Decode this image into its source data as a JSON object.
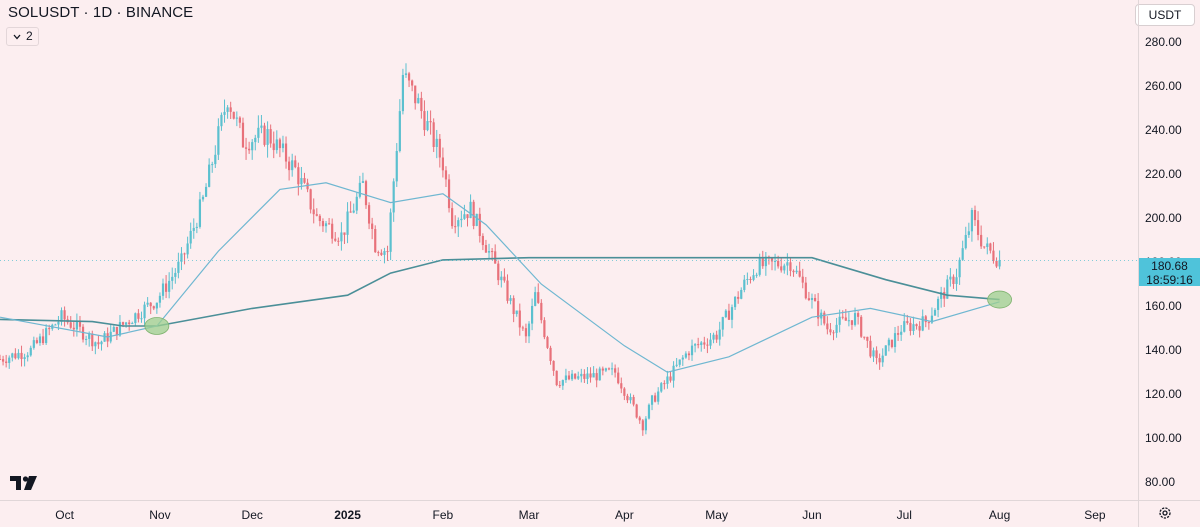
{
  "header": {
    "symbol_title": "SOLUSDT · 1D · BINANCE",
    "indicator_count": "2",
    "currency": "USDT"
  },
  "last_price": {
    "value": "180.68",
    "countdown": "18:59:16",
    "color": "#4fc3da"
  },
  "colors": {
    "background": "#fceef0",
    "up_candle": "#5bc0cf",
    "down_candle": "#e8717a",
    "ma_fast": "#6fb7d1",
    "ma_slow": "#4b8f98",
    "highlight_circle": "#9ccf8e"
  },
  "icons": {
    "logo": "tradingview-logo",
    "settings": "gear-icon",
    "toggle": "chevron-down-icon"
  },
  "chart_data": {
    "type": "candlestick",
    "title": "SOLUSDT · 1D · BINANCE",
    "y_ticks": [
      "280.00",
      "260.00",
      "240.00",
      "220.00",
      "200.00",
      "180.00",
      "160.00",
      "140.00",
      "120.00",
      "100.00",
      "80.00"
    ],
    "ylim": [
      72,
      299
    ],
    "x_ticks": [
      {
        "label": "Oct",
        "date": "2024-10-01"
      },
      {
        "label": "Nov",
        "date": "2024-11-01"
      },
      {
        "label": "Dec",
        "date": "2024-12-01"
      },
      {
        "label": "2025",
        "date": "2025-01-01",
        "bold": true
      },
      {
        "label": "Feb",
        "date": "2025-02-01"
      },
      {
        "label": "Mar",
        "date": "2025-03-01"
      },
      {
        "label": "Apr",
        "date": "2025-04-01"
      },
      {
        "label": "May",
        "date": "2025-05-01"
      },
      {
        "label": "Jun",
        "date": "2025-06-01"
      },
      {
        "label": "Jul",
        "date": "2025-07-01"
      },
      {
        "label": "Aug",
        "date": "2025-08-01"
      },
      {
        "label": "Sep",
        "date": "2025-09-01"
      }
    ],
    "xlim": [
      "2024-09-10",
      "2025-09-15"
    ],
    "price_path_key_points": [
      [
        "2024-09-10",
        136
      ],
      [
        "2024-09-20",
        140
      ],
      [
        "2024-09-30",
        155
      ],
      [
        "2024-10-12",
        143
      ],
      [
        "2024-10-25",
        157
      ],
      [
        "2024-10-31",
        163
      ],
      [
        "2024-11-08",
        180
      ],
      [
        "2024-11-15",
        208
      ],
      [
        "2024-11-23",
        255
      ],
      [
        "2024-11-28",
        235
      ],
      [
        "2024-12-06",
        238
      ],
      [
        "2024-12-15",
        222
      ],
      [
        "2024-12-22",
        200
      ],
      [
        "2024-12-30",
        192
      ],
      [
        "2025-01-06",
        215
      ],
      [
        "2025-01-10",
        188
      ],
      [
        "2025-01-14",
        185
      ],
      [
        "2025-01-19",
        265
      ],
      [
        "2025-01-24",
        252
      ],
      [
        "2025-02-01",
        225
      ],
      [
        "2025-02-04",
        200
      ],
      [
        "2025-02-10",
        204
      ],
      [
        "2025-02-18",
        178
      ],
      [
        "2025-02-28",
        145
      ],
      [
        "2025-03-03",
        165
      ],
      [
        "2025-03-10",
        126
      ],
      [
        "2025-03-20",
        128
      ],
      [
        "2025-03-29",
        130
      ],
      [
        "2025-04-07",
        106
      ],
      [
        "2025-04-10",
        117
      ],
      [
        "2025-04-22",
        140
      ],
      [
        "2025-05-01",
        147
      ],
      [
        "2025-05-10",
        170
      ],
      [
        "2025-05-14",
        178
      ],
      [
        "2025-05-25",
        180
      ],
      [
        "2025-06-01",
        162
      ],
      [
        "2025-06-06",
        150
      ],
      [
        "2025-06-15",
        155
      ],
      [
        "2025-06-22",
        134
      ],
      [
        "2025-06-30",
        150
      ],
      [
        "2025-07-08",
        153
      ],
      [
        "2025-07-12",
        162
      ],
      [
        "2025-07-18",
        175
      ],
      [
        "2025-07-23",
        200
      ],
      [
        "2025-07-27",
        187
      ],
      [
        "2025-08-01",
        180.68
      ]
    ],
    "series": [
      {
        "values": [
          [
            "2024-09-10",
            154
          ],
          [
            "2024-10-10",
            153
          ],
          [
            "2024-10-20",
            151
          ],
          [
            "2024-10-31",
            151
          ],
          [
            "2024-12-01",
            159
          ],
          [
            "2025-01-01",
            165
          ],
          [
            "2025-01-15",
            175
          ],
          [
            "2025-02-01",
            181
          ],
          [
            "2025-03-01",
            182
          ],
          [
            "2025-04-15",
            182
          ],
          [
            "2025-06-01",
            182
          ],
          [
            "2025-06-25",
            172
          ],
          [
            "2025-07-15",
            165
          ],
          [
            "2025-08-01",
            163
          ]
        ]
      },
      {
        "values": [
          [
            "2024-09-10",
            155
          ],
          [
            "2024-10-15",
            146
          ],
          [
            "2024-10-31",
            151
          ],
          [
            "2024-11-20",
            185
          ],
          [
            "2024-12-10",
            213
          ],
          [
            "2024-12-25",
            216
          ],
          [
            "2025-01-15",
            207
          ],
          [
            "2025-02-01",
            211
          ],
          [
            "2025-02-15",
            197
          ],
          [
            "2025-03-05",
            170
          ],
          [
            "2025-04-01",
            142
          ],
          [
            "2025-04-15",
            130
          ],
          [
            "2025-05-05",
            137
          ],
          [
            "2025-06-01",
            155
          ],
          [
            "2025-06-20",
            159
          ],
          [
            "2025-07-10",
            153
          ],
          [
            "2025-08-01",
            162
          ]
        ]
      }
    ],
    "annotations": [
      {
        "type": "circle",
        "date": "2024-10-31",
        "value": 151
      },
      {
        "type": "circle",
        "date": "2025-08-01",
        "value": 163
      }
    ]
  }
}
